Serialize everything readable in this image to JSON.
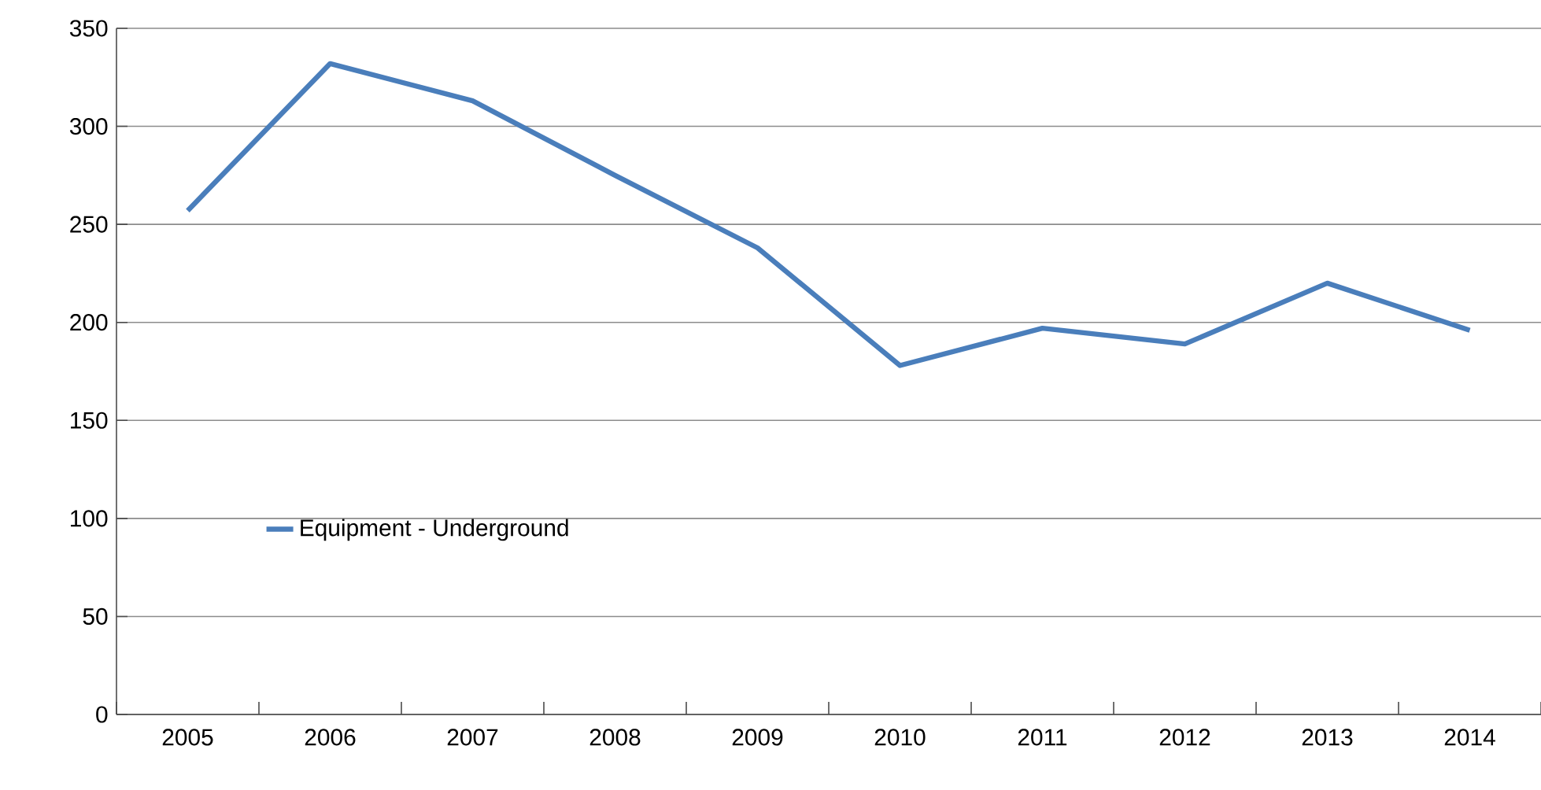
{
  "chart_data": {
    "type": "line",
    "categories": [
      "2005",
      "2006",
      "2007",
      "2008",
      "2009",
      "2010",
      "2011",
      "2012",
      "2013",
      "2014"
    ],
    "series": [
      {
        "name": "Equipment - Underground",
        "color": "#4a7ebb",
        "values": [
          257,
          332,
          313,
          275,
          238,
          178,
          197,
          189,
          220,
          196
        ]
      }
    ],
    "ylim": [
      0,
      350
    ],
    "yticks": [
      0,
      50,
      100,
      150,
      200,
      250,
      300,
      350
    ],
    "grid": "y",
    "legend": "bottom left",
    "marker": "none",
    "line_style": "solid"
  }
}
